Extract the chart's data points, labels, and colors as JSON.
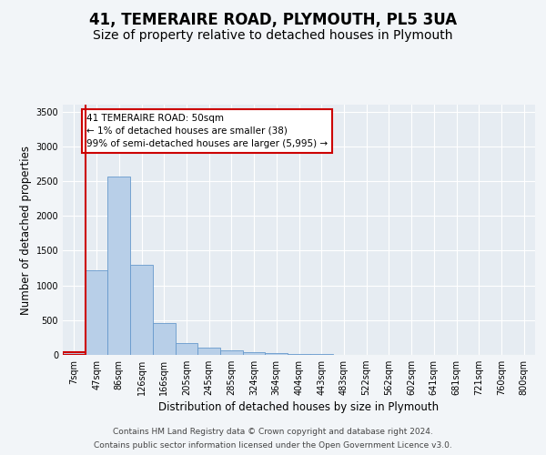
{
  "title_line1": "41, TEMERAIRE ROAD, PLYMOUTH, PL5 3UA",
  "title_line2": "Size of property relative to detached houses in Plymouth",
  "xlabel": "Distribution of detached houses by size in Plymouth",
  "ylabel": "Number of detached properties",
  "categories": [
    "7sqm",
    "47sqm",
    "86sqm",
    "126sqm",
    "166sqm",
    "205sqm",
    "245sqm",
    "285sqm",
    "324sqm",
    "364sqm",
    "404sqm",
    "443sqm",
    "483sqm",
    "522sqm",
    "562sqm",
    "602sqm",
    "641sqm",
    "681sqm",
    "721sqm",
    "760sqm",
    "800sqm"
  ],
  "values": [
    38,
    1220,
    2570,
    1300,
    460,
    175,
    110,
    60,
    40,
    30,
    18,
    10,
    5,
    2,
    1,
    1,
    0,
    0,
    0,
    0,
    0
  ],
  "bar_color": "#b8cfe8",
  "bar_edge_color": "#6699cc",
  "highlight_color": "#cc0000",
  "annotation_text": "41 TEMERAIRE ROAD: 50sqm\n← 1% of detached houses are smaller (38)\n99% of semi-detached houses are larger (5,995) →",
  "annotation_box_color": "#ffffff",
  "annotation_box_edge_color": "#cc0000",
  "ylim": [
    0,
    3600
  ],
  "yticks": [
    0,
    500,
    1000,
    1500,
    2000,
    2500,
    3000,
    3500
  ],
  "footer_line1": "Contains HM Land Registry data © Crown copyright and database right 2024.",
  "footer_line2": "Contains public sector information licensed under the Open Government Licence v3.0.",
  "bg_color": "#f2f5f8",
  "plot_bg_color": "#e6ecf2",
  "grid_color": "#ffffff",
  "title_fontsize": 12,
  "subtitle_fontsize": 10,
  "axis_label_fontsize": 8.5,
  "tick_fontsize": 7,
  "footer_fontsize": 6.5
}
